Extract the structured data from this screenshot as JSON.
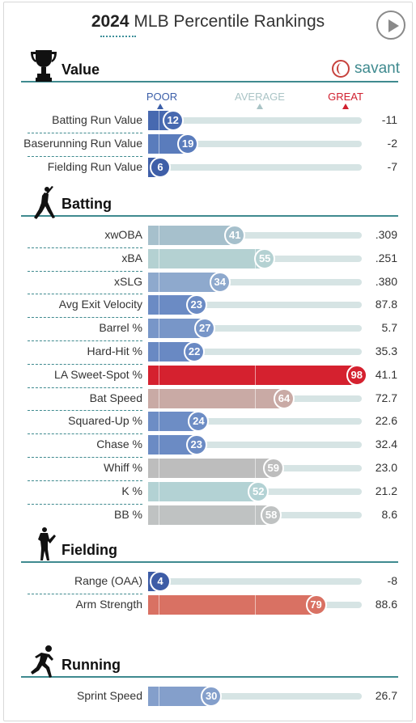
{
  "header": {
    "year": "2024",
    "title": "MLB Percentile Rankings",
    "play_icon": "play-circle-icon"
  },
  "brand": {
    "name": "savant",
    "icon": "baseball-icon",
    "accent": "#3f8a8f"
  },
  "scale": {
    "poor": "POOR",
    "average": "AVERAGE",
    "great": "GREAT",
    "poor_color": "#3b5ea8",
    "average_color": "#aac4c6",
    "great_color": "#d0202f"
  },
  "sections": [
    {
      "key": "value",
      "title": "Value",
      "icon": "trophy-icon",
      "metrics": [
        {
          "label": "Batting Run Value",
          "percentile": 12,
          "value": "-11",
          "color": "#4769b0"
        },
        {
          "label": "Baserunning Run Value",
          "percentile": 19,
          "value": "-2",
          "color": "#5a7cbc"
        },
        {
          "label": "Fielding Run Value",
          "percentile": 6,
          "value": "-7",
          "color": "#3f5fa8"
        }
      ]
    },
    {
      "key": "batting",
      "title": "Batting",
      "icon": "batter-icon",
      "metrics": [
        {
          "label": "xwOBA",
          "percentile": 41,
          "value": ".309",
          "color": "#a6c0cc"
        },
        {
          "label": "xBA",
          "percentile": 55,
          "value": ".251",
          "color": "#b4d1d2"
        },
        {
          "label": "xSLG",
          "percentile": 34,
          "value": ".380",
          "color": "#8ea9cd"
        },
        {
          "label": "Avg Exit Velocity",
          "percentile": 23,
          "value": "87.8",
          "color": "#6b8bc4"
        },
        {
          "label": "Barrel %",
          "percentile": 27,
          "value": "5.7",
          "color": "#7896c8"
        },
        {
          "label": "Hard-Hit %",
          "percentile": 22,
          "value": "35.3",
          "color": "#6989c3"
        },
        {
          "label": "LA Sweet-Spot %",
          "percentile": 98,
          "value": "41.1",
          "color": "#d5212f"
        },
        {
          "label": "Bat Speed",
          "percentile": 64,
          "value": "72.7",
          "color": "#c9aaa5"
        },
        {
          "label": "Squared-Up %",
          "percentile": 24,
          "value": "22.6",
          "color": "#6d8dc5"
        },
        {
          "label": "Chase %",
          "percentile": 23,
          "value": "32.4",
          "color": "#6b8bc4"
        },
        {
          "label": "Whiff %",
          "percentile": 59,
          "value": "23.0",
          "color": "#bdbdbd"
        },
        {
          "label": "K %",
          "percentile": 52,
          "value": "21.2",
          "color": "#b3d2d4"
        },
        {
          "label": "BB %",
          "percentile": 58,
          "value": "8.6",
          "color": "#bfc2c2"
        }
      ]
    },
    {
      "key": "fielding",
      "title": "Fielding",
      "icon": "fielder-icon",
      "metrics": [
        {
          "label": "Range (OAA)",
          "percentile": 4,
          "value": "-8",
          "color": "#3d5ca6"
        },
        {
          "label": "Arm Strength",
          "percentile": 79,
          "value": "88.6",
          "color": "#d97163"
        }
      ]
    },
    {
      "key": "running",
      "title": "Running",
      "icon": "runner-icon",
      "metrics": [
        {
          "label": "Sprint Speed",
          "percentile": 30,
          "value": "26.7",
          "color": "#849fcb"
        }
      ]
    }
  ],
  "chart_data": {
    "type": "bar",
    "title": "2024 MLB Percentile Rankings",
    "xlim": [
      0,
      100
    ],
    "categories": [
      "Batting Run Value",
      "Baserunning Run Value",
      "Fielding Run Value",
      "xwOBA",
      "xBA",
      "xSLG",
      "Avg Exit Velocity",
      "Barrel %",
      "Hard-Hit %",
      "LA Sweet-Spot %",
      "Bat Speed",
      "Squared-Up %",
      "Chase %",
      "Whiff %",
      "K %",
      "BB %",
      "Range (OAA)",
      "Arm Strength",
      "Sprint Speed"
    ],
    "series": [
      {
        "name": "Percentile",
        "values": [
          12,
          19,
          6,
          41,
          55,
          34,
          23,
          27,
          22,
          98,
          64,
          24,
          23,
          59,
          52,
          58,
          4,
          79,
          30
        ]
      }
    ],
    "stat_values": [
      "-11",
      "-2",
      "-7",
      ".309",
      ".251",
      ".380",
      "87.8",
      "5.7",
      "35.3",
      "41.1",
      "72.7",
      "22.6",
      "32.4",
      "23.0",
      "21.2",
      "8.6",
      "-8",
      "88.6",
      "26.7"
    ]
  }
}
